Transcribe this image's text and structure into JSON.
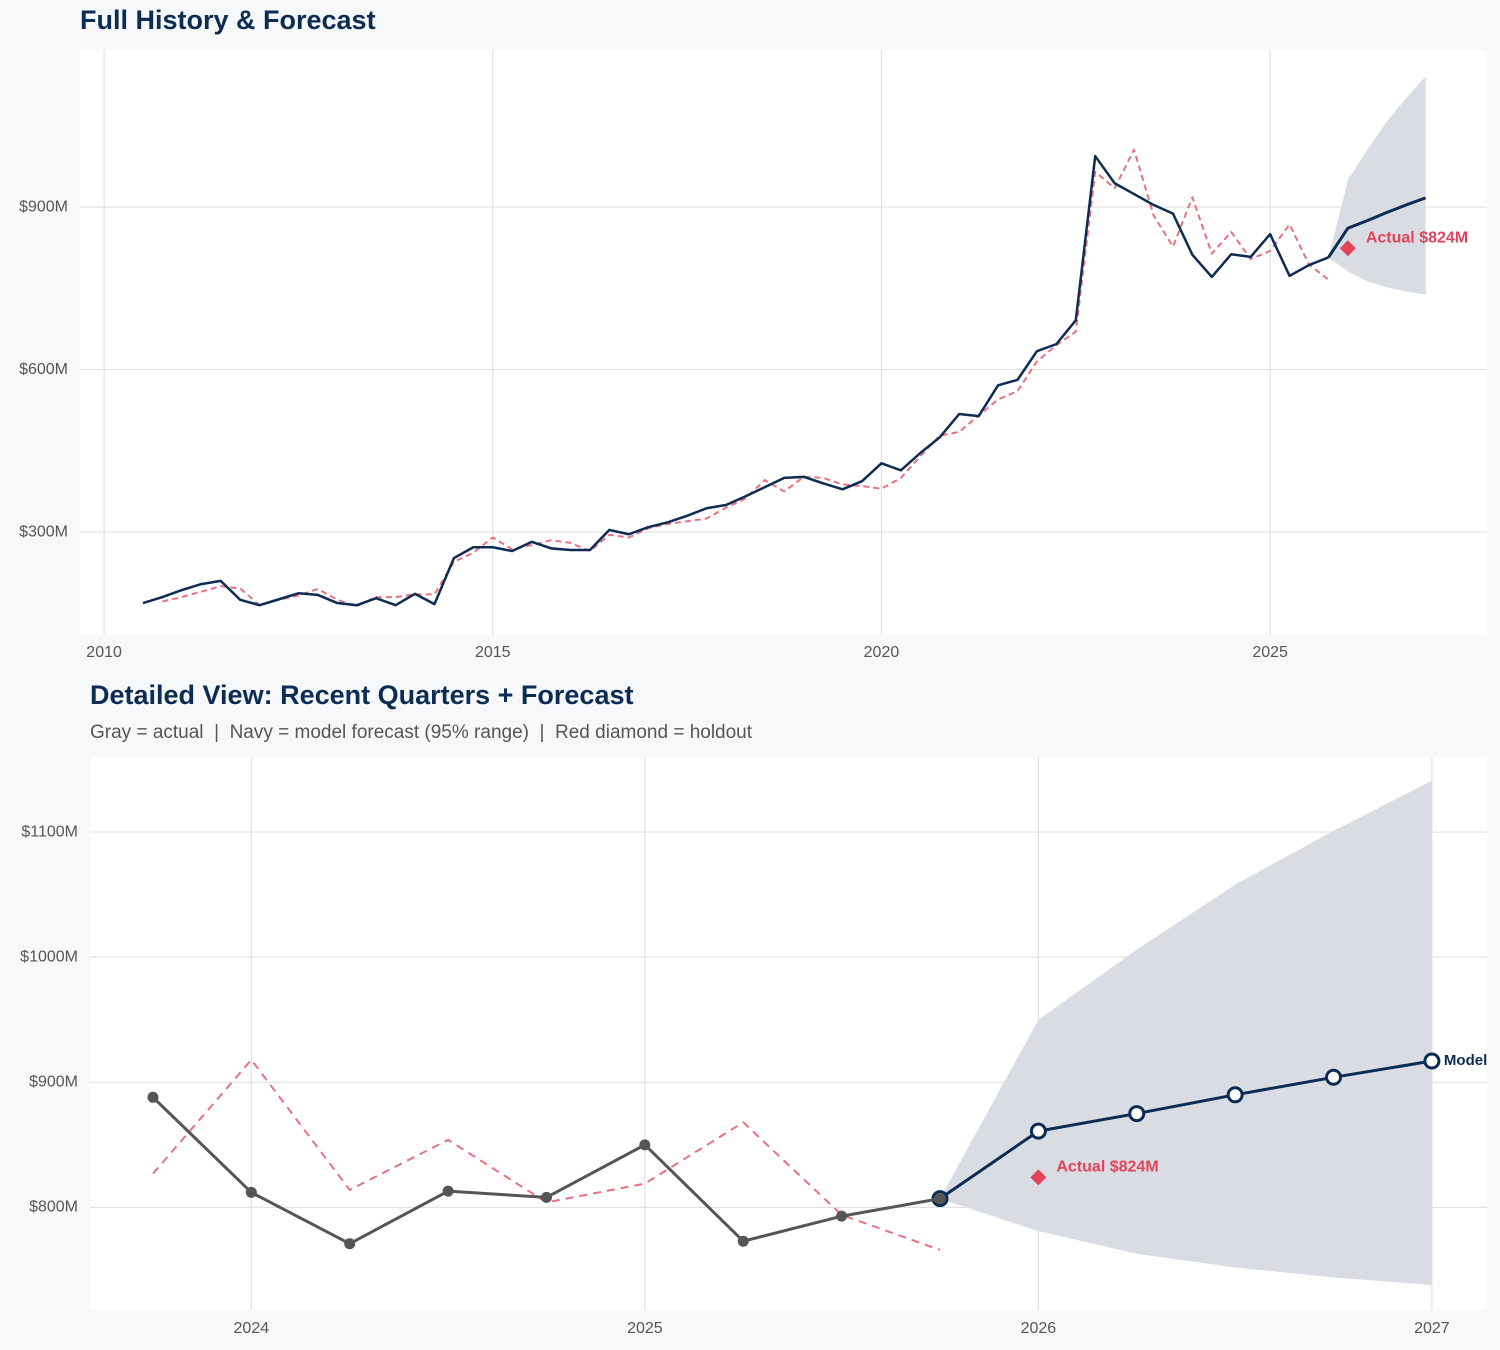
{
  "chart_data": [
    {
      "type": "line",
      "title": "Full History & Forecast",
      "xlim": [
        2009.69,
        2027.79
      ],
      "xticks": [
        2010,
        2015,
        2020,
        2025
      ],
      "ylim": [
        110,
        1190
      ],
      "yticks": [
        {
          "value": 300,
          "label": "$300M"
        },
        {
          "value": 600,
          "label": "$600M"
        },
        {
          "value": 900,
          "label": "$900M"
        }
      ],
      "grid": true,
      "band": {
        "color": "#d9dde3",
        "x": [
          2025.75,
          2026,
          2026.25,
          2026.5,
          2026.75,
          2027
        ],
        "lower": [
          807,
          781,
          763,
          752,
          744,
          738
        ],
        "upper": [
          807,
          950,
          1006,
          1058,
          1101,
          1141
        ]
      },
      "series": [
        {
          "color": "#e8727f",
          "dash": "6 4",
          "x": [
            2010.5,
            2010.75,
            2011,
            2011.25,
            2011.5,
            2011.75,
            2012,
            2012.25,
            2012.5,
            2012.75,
            2013,
            2013.25,
            2013.5,
            2013.75,
            2014,
            2014.25,
            2014.5,
            2014.75,
            2015,
            2015.25,
            2015.5,
            2015.75,
            2016,
            2016.25,
            2016.5,
            2016.75,
            2017,
            2017.25,
            2017.5,
            2017.75,
            2018,
            2018.25,
            2018.5,
            2018.75,
            2019,
            2019.25,
            2019.5,
            2019.75,
            2020,
            2020.25,
            2020.5,
            2020.75,
            2021,
            2021.25,
            2021.5,
            2021.75,
            2022,
            2022.25,
            2022.5,
            2022.75,
            2023,
            2023.25,
            2023.5,
            2023.75,
            2024,
            2024.25,
            2024.5,
            2024.75,
            2025,
            2025.25,
            2025.5,
            2025.75
          ],
          "values": [
            null,
            172,
            180,
            190,
            200,
            196,
            165,
            175,
            183,
            195,
            175,
            163,
            180,
            180,
            185,
            185,
            245,
            262,
            290,
            268,
            276,
            285,
            280,
            265,
            295,
            290,
            307,
            315,
            320,
            325,
            345,
            362,
            396,
            375,
            402,
            400,
            388,
            385,
            380,
            400,
            440,
            478,
            485,
            515,
            545,
            560,
            615,
            645,
            670,
            965,
            935,
            1006,
            885,
            827,
            918,
            814,
            854,
            804,
            819,
            868,
            794,
            766
          ]
        },
        {
          "color": "#0d2c54",
          "width": 3,
          "x": [
            2025.75,
            2026,
            2026.25,
            2026.5,
            2026.75,
            2027
          ],
          "values": [
            807,
            861,
            875,
            890,
            904,
            917
          ]
        },
        {
          "color": "#0d2c54",
          "width": 2.5,
          "x": [
            2010.5,
            2010.75,
            2011,
            2011.25,
            2011.5,
            2011.75,
            2012,
            2012.25,
            2012.5,
            2012.75,
            2013,
            2013.25,
            2013.5,
            2013.75,
            2014,
            2014.25,
            2014.5,
            2014.75,
            2015,
            2015.25,
            2015.5,
            2015.75,
            2016,
            2016.25,
            2016.5,
            2016.75,
            2017,
            2017.25,
            2017.5,
            2017.75,
            2018,
            2018.25,
            2018.5,
            2018.75,
            2019,
            2019.25,
            2019.5,
            2019.75,
            2020,
            2020.25,
            2020.5,
            2020.75,
            2021,
            2021.25,
            2021.5,
            2021.75,
            2022,
            2022.25,
            2022.5,
            2022.75,
            2023,
            2023.25,
            2023.5,
            2023.75,
            2024,
            2024.25,
            2024.5,
            2024.75,
            2025,
            2025.25,
            2025.5,
            2025.75
          ],
          "values": [
            169,
            180,
            193,
            204,
            210,
            175,
            165,
            176,
            187,
            184,
            169,
            165,
            178,
            165,
            186,
            167,
            252,
            272,
            272,
            265,
            282,
            270,
            267,
            267,
            304,
            296,
            309,
            318,
            330,
            344,
            350,
            366,
            383,
            400,
            402,
            390,
            379,
            394,
            427,
            414,
            446,
            475,
            518,
            514,
            571,
            581,
            634,
            647,
            691,
            994,
            944,
            924,
            904,
            888,
            812,
            771,
            813,
            808,
            850,
            773,
            793,
            807
          ]
        }
      ],
      "holdout": {
        "x": 2026,
        "value": 824,
        "label": "Actual $824M",
        "color": "#e0435a"
      }
    },
    {
      "type": "line",
      "title": "Detailed View: Recent Quarters + Forecast",
      "subtitle": "Gray = actual  |  Navy = model forecast (95% range)  |  Red diamond = holdout",
      "xlim": [
        2023.59,
        2027.14
      ],
      "xticks": [
        2024,
        2025,
        2026,
        2027
      ],
      "ylim": [
        718,
        1160
      ],
      "yticks": [
        {
          "value": 800,
          "label": "$800M"
        },
        {
          "value": 900,
          "label": "$900M"
        },
        {
          "value": 1000,
          "label": "$1000M"
        },
        {
          "value": 1100,
          "label": "$1100M"
        }
      ],
      "grid": true,
      "band": {
        "color": "#d9dde3",
        "x": [
          2025.75,
          2026,
          2026.25,
          2026.5,
          2026.75,
          2027
        ],
        "lower": [
          807,
          781,
          763,
          752,
          744,
          738
        ],
        "upper": [
          807,
          950,
          1006,
          1058,
          1101,
          1141
        ]
      },
      "series": [
        {
          "color": "#e8727f",
          "dash": "8 6",
          "x": [
            2023.75,
            2024,
            2024.25,
            2024.5,
            2024.75,
            2025,
            2025.25,
            2025.5,
            2025.75
          ],
          "values": [
            827,
            918,
            814,
            854,
            804,
            819,
            868,
            794,
            766
          ]
        },
        {
          "name": "Model",
          "color": "#0d2c54",
          "width": 3,
          "marker": "ring",
          "x": [
            2025.75,
            2026,
            2026.25,
            2026.5,
            2026.75,
            2027
          ],
          "values": [
            807,
            861,
            875,
            890,
            904,
            917
          ]
        },
        {
          "color": "#555555",
          "width": 3,
          "marker": "dot",
          "x": [
            2023.75,
            2024,
            2024.25,
            2024.5,
            2024.75,
            2025,
            2025.25,
            2025.5,
            2025.75
          ],
          "values": [
            888,
            812,
            771,
            813,
            808,
            850,
            773,
            793,
            807
          ]
        }
      ],
      "holdout": {
        "x": 2026,
        "value": 824,
        "label": "Actual $824M",
        "color": "#e0435a"
      }
    }
  ]
}
